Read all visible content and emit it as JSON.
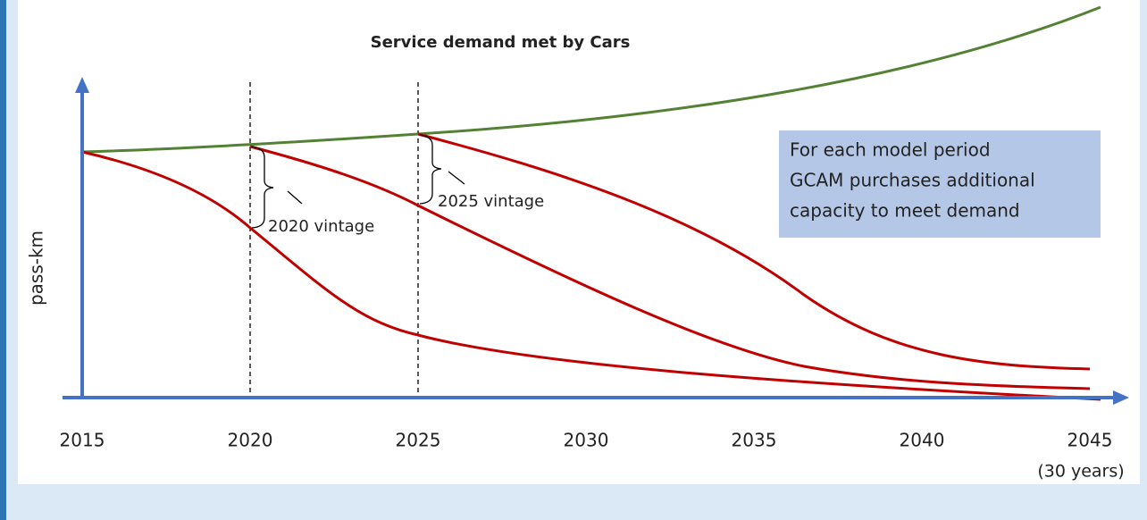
{
  "title": "Service demand met by Cars",
  "y_axis_label": "pass-km",
  "x_labels": [
    "2015",
    "2020",
    "2025",
    "2030",
    "2035",
    "2040",
    "2045"
  ],
  "x_note": "(30 years)",
  "annotations": [
    "2020 vintage",
    "2025 vintage"
  ],
  "info_box": {
    "lines": [
      "For each model period",
      "GCAM purchases additional",
      "capacity to meet demand"
    ]
  }
}
